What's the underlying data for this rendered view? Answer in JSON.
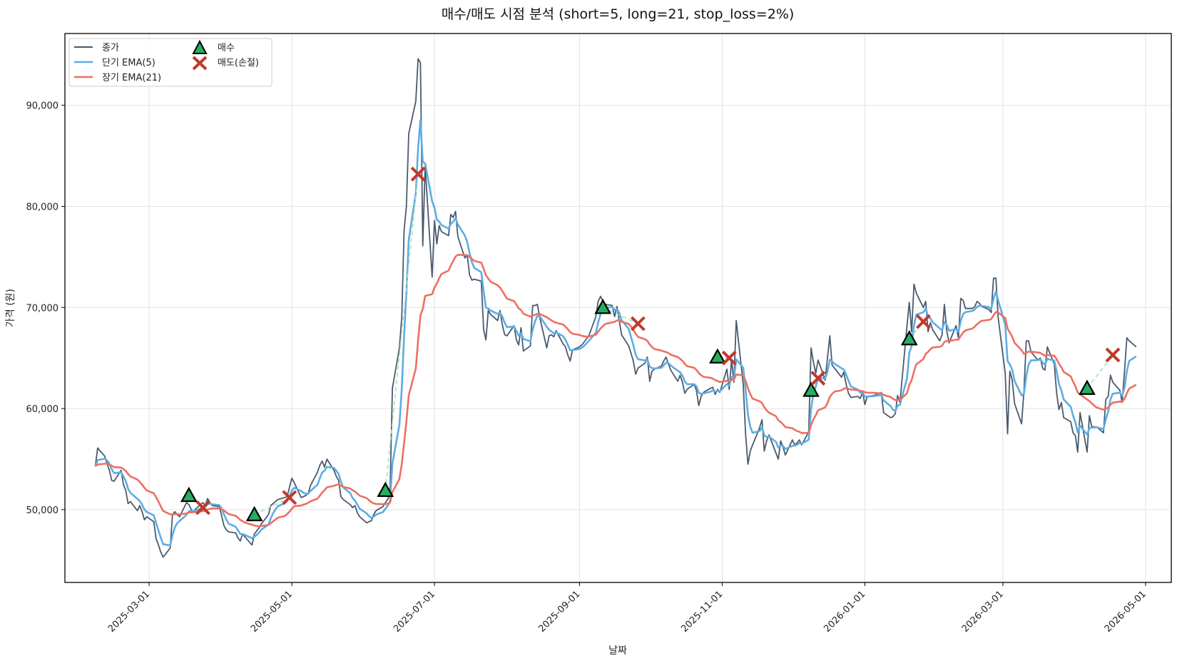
{
  "chart_data": {
    "type": "line",
    "title": "매수/매도 시점 분석 (short=5, long=21, stop_loss=2%)",
    "xlabel": "날짜",
    "ylabel": "가격 (원)",
    "ylim": [
      42800,
      97100
    ],
    "xlim": [
      "2025-01-24",
      "2026-05-12"
    ],
    "grid": true,
    "legend_position": "top-left",
    "params": {
      "short": 5,
      "long": 21,
      "stop_loss": "2%"
    },
    "y_ticks": [
      {
        "value": 50000,
        "label": "50,000"
      },
      {
        "value": 60000,
        "label": "60,000"
      },
      {
        "value": 70000,
        "label": "70,000"
      },
      {
        "value": 80000,
        "label": "80,000"
      },
      {
        "value": 90000,
        "label": "90,000"
      }
    ],
    "x_ticks": [
      {
        "value": "2025-03-01",
        "label": "2025-03-01"
      },
      {
        "value": "2025-05-01",
        "label": "2025-05-01"
      },
      {
        "value": "2025-07-01",
        "label": "2025-07-01"
      },
      {
        "value": "2025-09-01",
        "label": "2025-09-01"
      },
      {
        "value": "2025-11-01",
        "label": "2025-11-01"
      },
      {
        "value": "2026-01-01",
        "label": "2026-01-01"
      },
      {
        "value": "2026-03-01",
        "label": "2026-03-01"
      },
      {
        "value": "2026-05-01",
        "label": "2026-05-01"
      }
    ],
    "series_start_date": "2025-02-06",
    "series_step": "business-day",
    "legend": [
      {
        "name": "종가",
        "kind": "line",
        "color": "#4a5a6d"
      },
      {
        "name": "단기 EMA(5)",
        "kind": "line",
        "color": "#5dade2"
      },
      {
        "name": "장기 EMA(21)",
        "kind": "line",
        "color": "#ec7063"
      },
      {
        "name": "매수",
        "kind": "marker-triangle",
        "color": "#27ae60"
      },
      {
        "name": "매도(손절)",
        "kind": "marker-x",
        "color": "#c0392b"
      }
    ],
    "series": [
      {
        "name": "종가",
        "color": "#4a5a6d",
        "values": [
          54300,
          56100,
          55300,
          54600,
          53900,
          52900,
          52800,
          53900,
          52500,
          51900,
          50600,
          50800,
          49900,
          50400,
          49800,
          49000,
          49300,
          48800,
          47100,
          46500,
          45800,
          45300,
          46200,
          49500,
          49800,
          49500,
          49300,
          50700,
          50500,
          50000,
          49800,
          50100,
          50700,
          50400,
          51100,
          50700,
          50400,
          50300,
          49400,
          48400,
          48000,
          47800,
          47700,
          47200,
          46900,
          47600,
          47300,
          46500,
          47600,
          47900,
          48200,
          48600,
          49500,
          50400,
          50600,
          50800,
          51000,
          51200,
          51300,
          52200,
          53100,
          52700,
          51200,
          51300,
          51400,
          51600,
          52400,
          53700,
          54400,
          54800,
          54200,
          55000,
          53900,
          53300,
          52900,
          51300,
          51000,
          50500,
          50200,
          50400,
          49700,
          49300,
          48700,
          48800,
          48900,
          49500,
          49900,
          50300,
          50700,
          51000,
          51800,
          62000,
          66000,
          69000,
          77600,
          80000,
          87200,
          90400,
          94600,
          94200,
          76100,
          84000,
          73000,
          78600,
          76300,
          78100,
          77500,
          77100,
          79200,
          78900,
          79500,
          77000,
          74900,
          75200,
          73200,
          72700,
          72800,
          72600,
          67800,
          66800,
          69700,
          69300,
          68700,
          69700,
          68300,
          67300,
          67200,
          68200,
          66800,
          66300,
          68000,
          65700,
          66200,
          70200,
          70200,
          70300,
          69000,
          66000,
          67200,
          67300,
          67100,
          67700,
          66400,
          66100,
          65300,
          64700,
          65800,
          66100,
          66300,
          66600,
          66900,
          67200,
          69100,
          70600,
          71100,
          70600,
          70300,
          70200,
          69100,
          70100,
          68700,
          67300,
          66200,
          65500,
          64700,
          63400,
          64000,
          64500,
          65100,
          62700,
          63700,
          63900,
          64200,
          64700,
          65100,
          64400,
          63800,
          62700,
          63300,
          62600,
          61500,
          61900,
          62400,
          61800,
          60300,
          61200,
          61600,
          62000,
          62100,
          61400,
          61900,
          61600,
          63900,
          61900,
          64800,
          62600,
          68700,
          62400,
          57500,
          54500,
          55800,
          56400,
          58100,
          58900,
          55800,
          56800,
          57400,
          55600,
          55000,
          56800,
          56200,
          55400,
          56900,
          56400,
          56600,
          56900,
          56400,
          57700,
          66000,
          64600,
          63500,
          64800,
          62800,
          65000,
          67200,
          64300,
          64000,
          63100,
          63600,
          62400,
          61500,
          61100,
          61200,
          61000,
          61600,
          60400,
          61200,
          61300,
          61400,
          61300,
          61600,
          59600,
          59100,
          59200,
          59500,
          61300,
          60600,
          68200,
          70500,
          67600,
          72300,
          71400,
          70000,
          70600,
          67600,
          68500,
          67800,
          66700,
          67300,
          70300,
          67700,
          66500,
          68200,
          67000,
          70900,
          70700,
          69900,
          69900,
          70100,
          70600,
          70400,
          70100,
          69800,
          69500,
          72900,
          72900,
          69000,
          63500,
          57500,
          63700,
          62800,
          60500,
          58500,
          61700,
          66700,
          66700,
          65600,
          64800,
          65000,
          64000,
          63800,
          66100,
          64400,
          61500,
          59900,
          60600,
          59100,
          58700,
          57600,
          57300,
          55700,
          59600,
          55700,
          59300,
          58200,
          58200,
          58200,
          57600,
          60900,
          61200,
          63300,
          62600,
          61800,
          60600,
          63700,
          67000,
          66700,
          66100
        ]
      },
      {
        "name": "단기 EMA(5)",
        "color": "#5dade2",
        "derived_from": "종가",
        "span": 5
      },
      {
        "name": "장기 EMA(21)",
        "color": "#ec7063",
        "derived_from": "종가",
        "span": 21
      }
    ],
    "buy_signals": [
      {
        "date": "2025-03-18",
        "price": 51400
      },
      {
        "date": "2025-04-15",
        "price": 49500
      },
      {
        "date": "2025-06-10",
        "price": 51900
      },
      {
        "date": "2025-09-11",
        "price": 70000
      },
      {
        "date": "2025-10-30",
        "price": 65100
      },
      {
        "date": "2025-12-09",
        "price": 61800
      },
      {
        "date": "2026-01-20",
        "price": 66900
      },
      {
        "date": "2026-04-06",
        "price": 62000
      }
    ],
    "sell_signals": [
      {
        "date": "2025-03-24",
        "price": 50200
      },
      {
        "date": "2025-04-30",
        "price": 51200
      },
      {
        "date": "2025-06-24",
        "price": 83200
      },
      {
        "date": "2025-09-26",
        "price": 68400
      },
      {
        "date": "2025-11-04",
        "price": 65000
      },
      {
        "date": "2025-12-12",
        "price": 63000
      },
      {
        "date": "2026-01-26",
        "price": 68600
      },
      {
        "date": "2026-04-17",
        "price": 65300
      }
    ]
  }
}
